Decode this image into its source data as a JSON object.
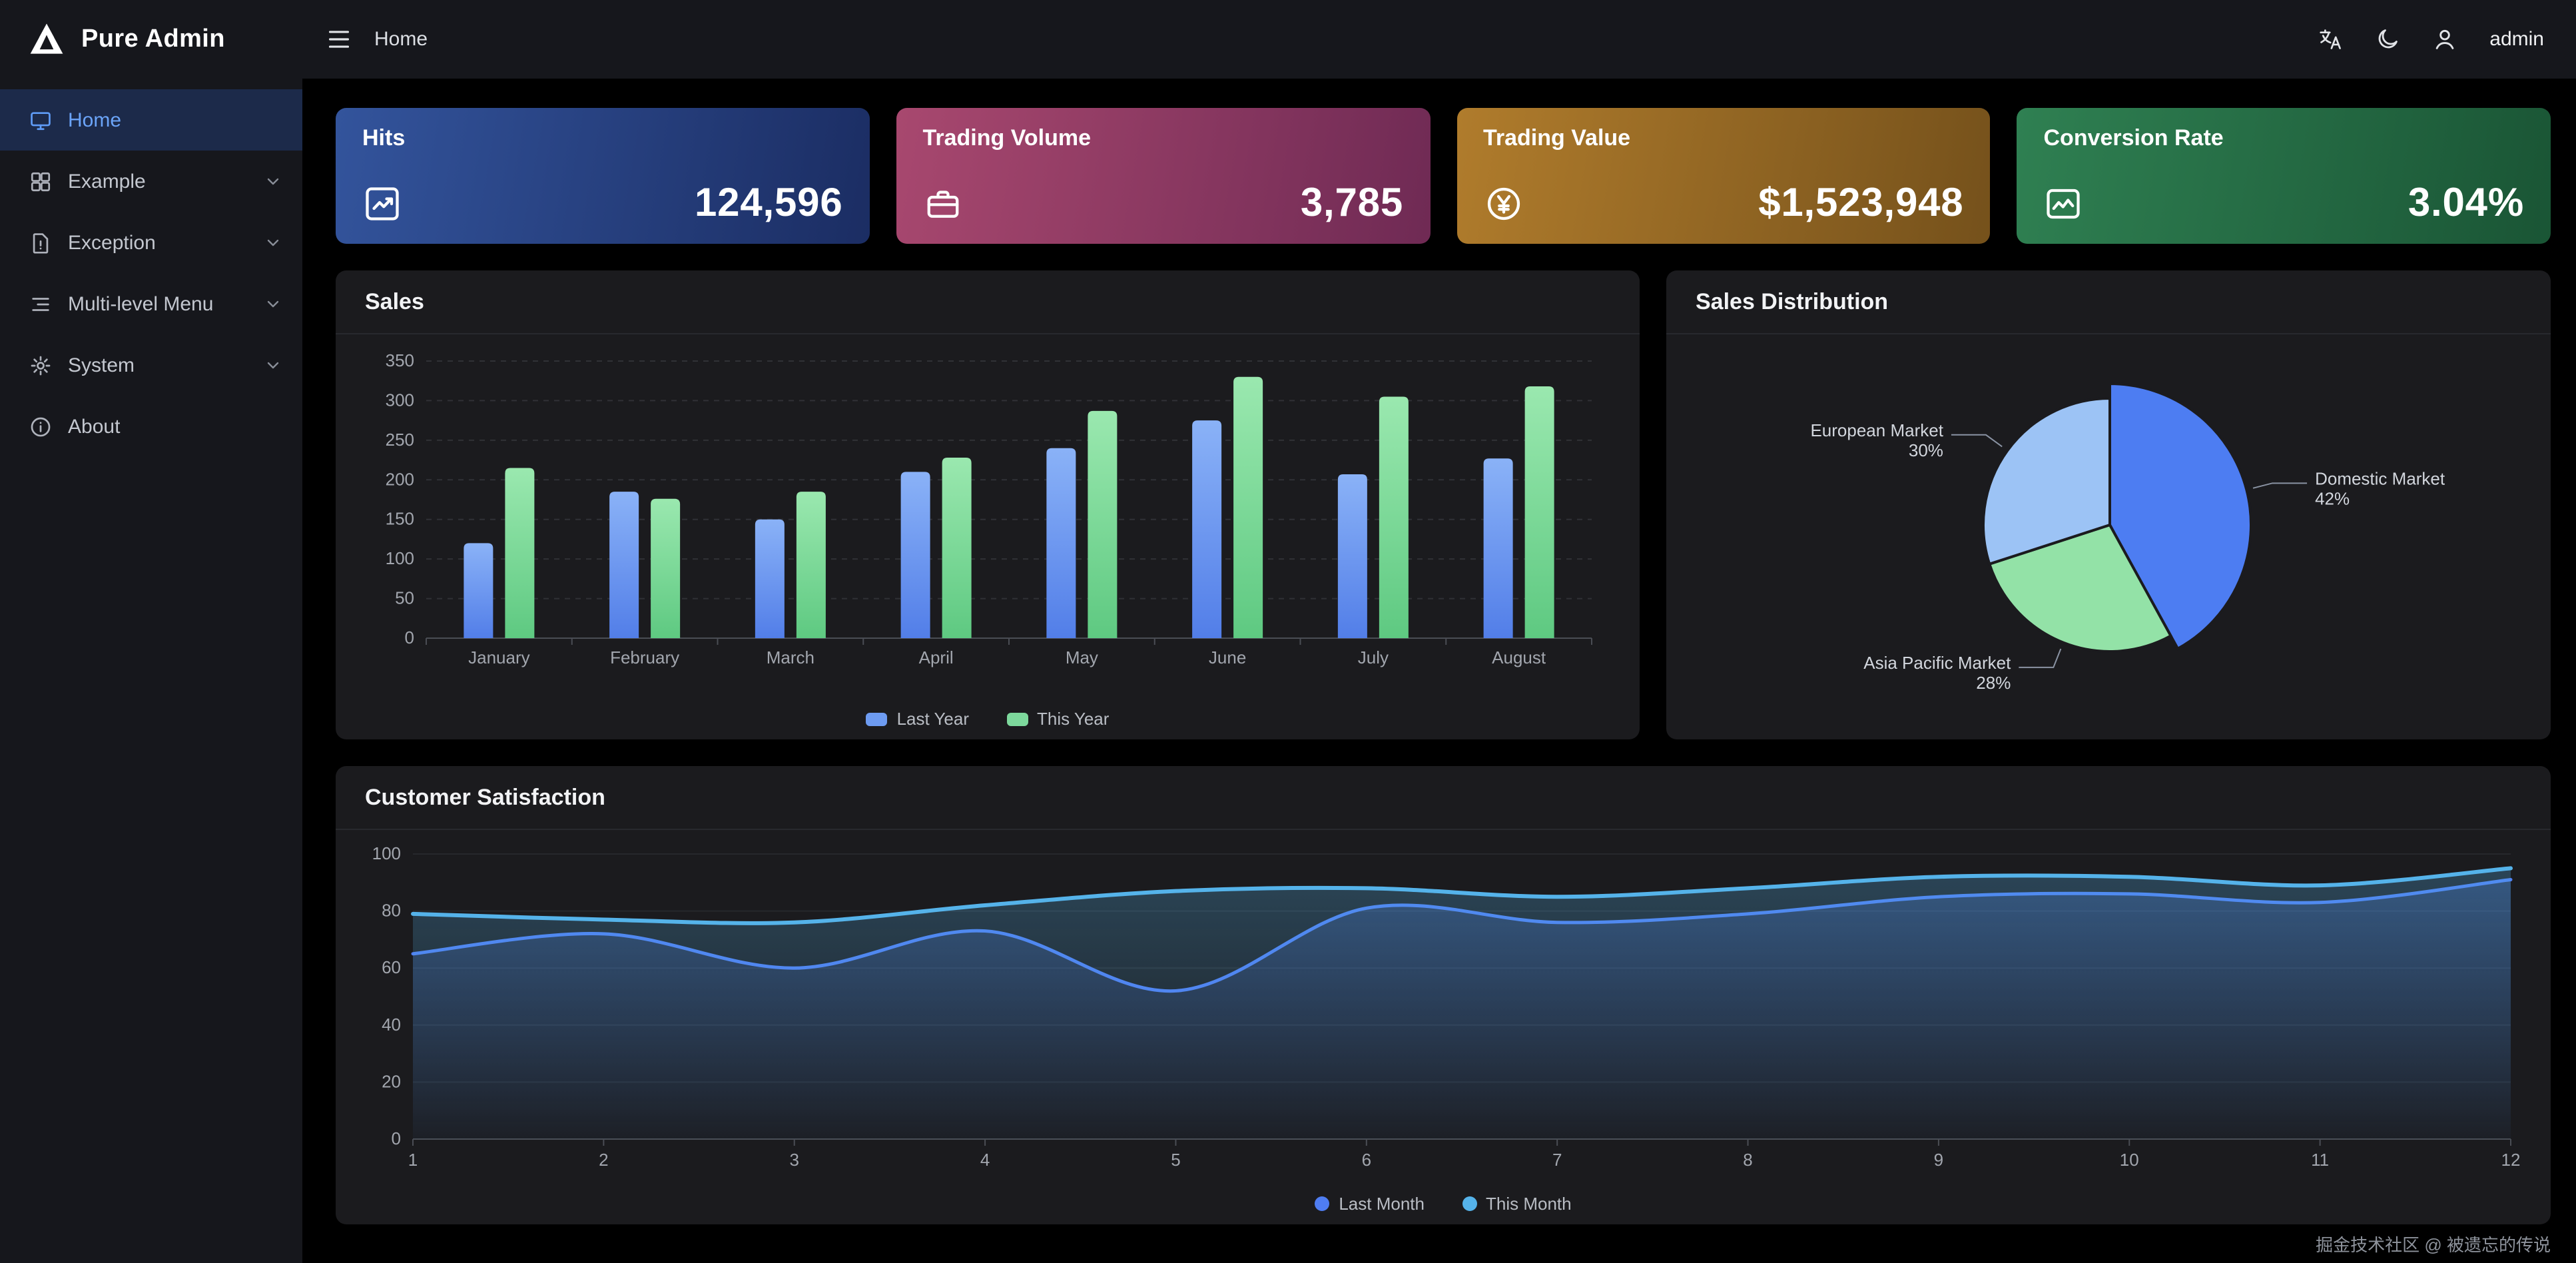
{
  "app": {
    "name": "Pure Admin",
    "footer_text": "掘金技术社区 @ 被遗忘的传说"
  },
  "navbar": {
    "breadcrumb": "Home",
    "username": "admin"
  },
  "sidebar": {
    "items": [
      {
        "label": "Home",
        "slug": "home",
        "icon": "monitor-icon",
        "active": true,
        "expandable": false
      },
      {
        "label": "Example",
        "slug": "example",
        "icon": "components-icon",
        "active": false,
        "expandable": true
      },
      {
        "label": "Exception",
        "slug": "exception",
        "icon": "exception-icon",
        "active": false,
        "expandable": true
      },
      {
        "label": "Multi-level Menu",
        "slug": "multi-level-menu",
        "icon": "list-menu-icon",
        "active": false,
        "expandable": true
      },
      {
        "label": "System",
        "slug": "system",
        "icon": "gear-icon",
        "active": false,
        "expandable": true
      },
      {
        "label": "About",
        "slug": "about",
        "icon": "info-icon",
        "active": false,
        "expandable": false
      }
    ]
  },
  "stats": [
    {
      "title": "Hits",
      "value": "124,596",
      "icon": "trend-chart-icon",
      "gradient": [
        "#33549c",
        "#1b2d63"
      ]
    },
    {
      "title": "Trading Volume",
      "value": "3,785",
      "icon": "briefcase-icon",
      "gradient": [
        "#a8486f",
        "#6f2a54"
      ]
    },
    {
      "title": "Trading Value",
      "value": "$1,523,948",
      "icon": "yen-coin-icon",
      "gradient": [
        "#b07c2c",
        "#75511b"
      ]
    },
    {
      "title": "Conversion Rate",
      "value": "3.04%",
      "icon": "chart-image-icon",
      "gradient": [
        "#2f8052",
        "#1a5535"
      ]
    }
  ],
  "cards": {
    "sales_title": "Sales",
    "distribution_title": "Sales Distribution",
    "satisfaction_title": "Customer Satisfaction"
  },
  "chart_data": [
    {
      "type": "bar",
      "title": "Sales",
      "categories": [
        "January",
        "February",
        "March",
        "April",
        "May",
        "June",
        "July",
        "August"
      ],
      "series": [
        {
          "name": "Last Year",
          "color": "#6d9bf1",
          "gradient": [
            "#8ab2f7",
            "#527ee8"
          ],
          "values": [
            120,
            185,
            150,
            210,
            240,
            275,
            207,
            227
          ]
        },
        {
          "name": "This Year",
          "color": "#7dd89c",
          "gradient": [
            "#9ae8af",
            "#5ec981"
          ],
          "values": [
            215,
            176,
            185,
            228,
            287,
            330,
            305,
            318
          ]
        }
      ],
      "ylim": [
        0,
        350
      ],
      "ytick_step": 50,
      "grid": "dashed-horizontal",
      "legend_position": "bottom"
    },
    {
      "type": "pie",
      "title": "Sales Distribution",
      "start_angle": "12-o-clock-clockwise",
      "slices": [
        {
          "name": "Domestic Market",
          "pct": 42,
          "color": "#4d7df2",
          "radius": 106
        },
        {
          "name": "Asia Pacific Market",
          "pct": 28,
          "color": "#93e2a7",
          "radius": 95
        },
        {
          "name": "European Market",
          "pct": 30,
          "color": "#9cc3f5",
          "radius": 95
        }
      ]
    },
    {
      "type": "line",
      "title": "Customer Satisfaction",
      "x": [
        1,
        2,
        3,
        4,
        5,
        6,
        7,
        8,
        9,
        10,
        11,
        12
      ],
      "series": [
        {
          "name": "Last Month",
          "color": "#4f7df2",
          "values": [
            65,
            72,
            60,
            73,
            52,
            81,
            76,
            79,
            85,
            86,
            83,
            91
          ]
        },
        {
          "name": "This Month",
          "color": "#55b3ea",
          "values": [
            79,
            77,
            76,
            82,
            87,
            88,
            85,
            88,
            92,
            92,
            89,
            95
          ]
        }
      ],
      "ylim": [
        0,
        100
      ],
      "ytick_step": 20,
      "area": true,
      "grid": "horizontal",
      "legend_position": "bottom"
    }
  ]
}
